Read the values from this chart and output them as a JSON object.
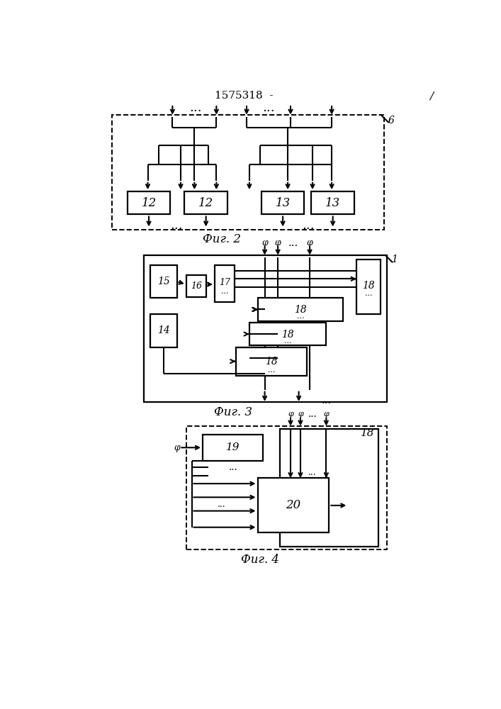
{
  "title": "1575318  -",
  "fig2_label": "Фиг. 2",
  "fig3_label": "Фиг. 3",
  "fig4_label": "Фиг. 4",
  "label6": "6",
  "label1": "1",
  "label14": "14",
  "label15": "15",
  "label16": "16",
  "label17": "17",
  "label18": "18",
  "label19": "19",
  "label20": "20",
  "label12": "12",
  "label13": "13"
}
